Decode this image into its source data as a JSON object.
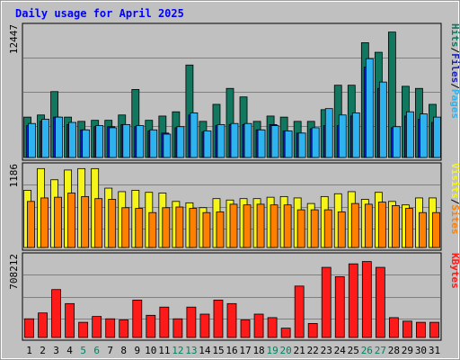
{
  "chart_data": {
    "type": "bar",
    "title": "Daily usage for April 2025",
    "days": [
      "1",
      "2",
      "3",
      "4",
      "5",
      "6",
      "7",
      "8",
      "9",
      "10",
      "11",
      "12",
      "13",
      "14",
      "15",
      "16",
      "17",
      "18",
      "19",
      "20",
      "21",
      "22",
      "23",
      "24",
      "25",
      "26",
      "27",
      "28",
      "29",
      "30",
      "31"
    ],
    "weekend_days": [
      "5",
      "6",
      "12",
      "13",
      "19",
      "20",
      "26",
      "27"
    ],
    "panels": [
      {
        "id": "top",
        "max_label": "12447",
        "ymax": 12447,
        "series": [
          {
            "name": "Hits",
            "color": "#11785f",
            "values": [
              3800,
              4000,
              6200,
              3800,
              3400,
              3500,
              3500,
              4000,
              6400,
              3500,
              3900,
              4300,
              8700,
              3400,
              5000,
              6500,
              5700,
              3400,
              3900,
              3800,
              3400,
              3400,
              4500,
              6800,
              6800,
              10800,
              9900,
              11800,
              6700,
              6500,
              5000
            ]
          },
          {
            "name": "Files",
            "color": "#1a20c0",
            "values": [
              3000,
              3400,
              3800,
              3100,
              2600,
              2900,
              2900,
              3100,
              2900,
              2500,
              2300,
              2800,
              4000,
              2400,
              3000,
              3100,
              3100,
              2600,
              3100,
              2500,
              2300,
              2700,
              3000,
              3000,
              3900,
              8500,
              6500,
              2800,
              3900,
              3600,
              3300
            ]
          },
          {
            "name": "Pages",
            "color": "#2cb3f0",
            "values": [
              3200,
              3600,
              3800,
              3300,
              2600,
              3000,
              2800,
              3100,
              3000,
              2600,
              2200,
              2900,
              4200,
              2500,
              3100,
              3200,
              3200,
              2600,
              3000,
              2500,
              2300,
              2800,
              4600,
              4000,
              4200,
              9300,
              7100,
              2900,
              4300,
              4100,
              3800
            ]
          }
        ]
      },
      {
        "id": "middle",
        "max_label": "1186",
        "ymax": 1186,
        "series": [
          {
            "name": "Visits",
            "color": "#f5f51a",
            "values": [
              820,
              1130,
              970,
              1110,
              1130,
              1130,
              850,
              800,
              820,
              790,
              780,
              660,
              640,
              570,
              700,
              680,
              700,
              700,
              720,
              730,
              710,
              630,
              730,
              770,
              800,
              690,
              790,
              660,
              610,
              710,
              710
            ]
          },
          {
            "name": "Sites",
            "color": "#ff8000",
            "values": [
              660,
              710,
              720,
              780,
              730,
              700,
              690,
              570,
              560,
              500,
              570,
              580,
              560,
              500,
              510,
              620,
              610,
              620,
              610,
              610,
              540,
              540,
              540,
              510,
              630,
              620,
              650,
              600,
              560,
              500,
              500
            ]
          }
        ]
      },
      {
        "id": "bottom",
        "max_label": "708212",
        "ymax": 708212,
        "series": [
          {
            "name": "KBytes",
            "color": "#ff1a1a",
            "values": [
              160000,
              210000,
              410000,
              290000,
              130000,
              180000,
              160000,
              150000,
              320000,
              190000,
              260000,
              160000,
              260000,
              200000,
              320000,
              290000,
              150000,
              200000,
              170000,
              80000,
              440000,
              120000,
              600000,
              520000,
              630000,
              650000,
              600000,
              170000,
              140000,
              130000,
              130000
            ]
          }
        ]
      }
    ],
    "legend": {
      "top": [
        {
          "text": "Pages",
          "color": "#2cb3f0"
        },
        {
          "text": "/",
          "color": "#000000"
        },
        {
          "text": "Files",
          "color": "#1a20c0"
        },
        {
          "text": "/",
          "color": "#000000"
        },
        {
          "text": "Hits",
          "color": "#11785f"
        }
      ],
      "middle": [
        {
          "text": "Sites",
          "color": "#ff8000"
        },
        {
          "text": "/",
          "color": "#000000"
        },
        {
          "text": "Visits",
          "color": "#f5f51a"
        }
      ],
      "bottom": [
        {
          "text": "KBytes",
          "color": "#ff1a1a"
        }
      ]
    },
    "colors": {
      "background": "#c0c0c0",
      "title": "#0000ff",
      "day_label": "#000000",
      "weekend_label": "#00805f",
      "gridline": "#808080"
    }
  }
}
